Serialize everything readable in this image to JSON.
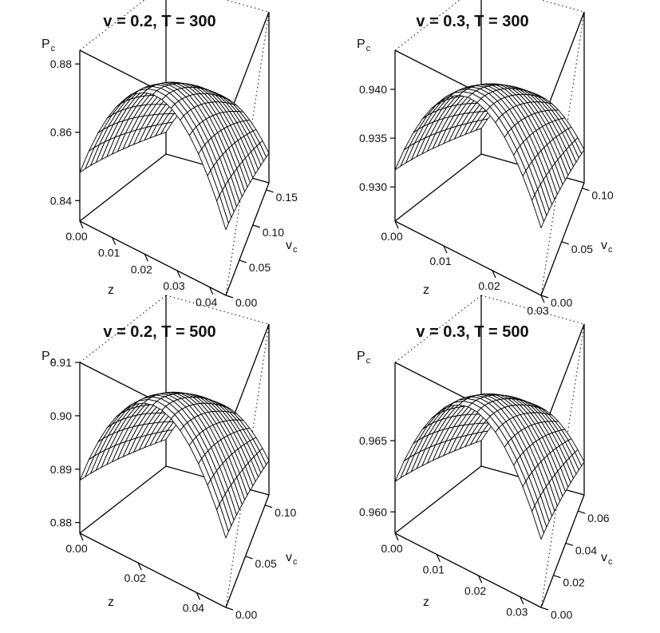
{
  "chart_data": [
    {
      "type": "surface",
      "title": "v = 0.2, T = 300",
      "zlabel": "P",
      "zlabel_sub": "c",
      "xlabel": "z",
      "ylabel": "v",
      "ylabel_sub": "c",
      "x_ticks": [
        "0.00",
        "0.01",
        "0.02",
        "0.03",
        "0.04"
      ],
      "y_ticks": [
        "0.00",
        "0.05",
        "0.10",
        "0.15"
      ],
      "z_ticks": [
        "0.84",
        "0.86",
        "0.88"
      ],
      "xlim": [
        0,
        0.045
      ],
      "ylim": [
        0,
        0.16
      ],
      "zlim": [
        0.834,
        0.884
      ],
      "z_min": 0.834,
      "z_max": 0.882,
      "z_xmax_ymax": 0.858,
      "z_xmax_y0": 0.866,
      "z_x0_ymax": 0.84
    },
    {
      "type": "surface",
      "title": "v = 0.3, T = 300",
      "zlabel": "P",
      "zlabel_sub": "c",
      "xlabel": "z",
      "ylabel": "v",
      "ylabel_sub": "c",
      "x_ticks": [
        "0.00",
        "0.01",
        "0.02",
        "0.03"
      ],
      "y_ticks": [
        "0.00",
        "0.05",
        "0.10"
      ],
      "z_ticks": [
        "0.930",
        "0.935",
        "0.940"
      ],
      "xlim": [
        0,
        0.03
      ],
      "ylim": [
        0,
        0.105
      ],
      "zlim": [
        0.9265,
        0.944
      ],
      "z_min": 0.927,
      "z_max": 0.943,
      "z_xmax_ymax": 0.9335,
      "z_xmax_y0": 0.936,
      "z_x0_ymax": 0.9315
    },
    {
      "type": "surface",
      "title": "v = 0.2, T = 500",
      "zlabel": "P",
      "zlabel_sub": "c",
      "xlabel": "z",
      "ylabel": "v",
      "ylabel_sub": "c",
      "x_ticks": [
        "0.00",
        "0.02",
        "0.04"
      ],
      "y_ticks": [
        "0.00",
        "0.05",
        "0.10"
      ],
      "z_ticks": [
        "0.88",
        "0.89",
        "0.90",
        "0.91"
      ],
      "xlim": [
        0,
        0.05
      ],
      "ylim": [
        0,
        0.11
      ],
      "zlim": [
        0.878,
        0.91
      ],
      "z_min": 0.879,
      "z_max": 0.909,
      "z_xmax_ymax": 0.894,
      "z_xmax_y0": 0.899,
      "z_x0_ymax": 0.882
    },
    {
      "type": "surface",
      "title": "v = 0.3, T = 500",
      "zlabel": "P",
      "zlabel_sub": "c",
      "xlabel": "z",
      "ylabel": "v",
      "ylabel_sub": "c",
      "x_ticks": [
        "0.00",
        "0.01",
        "0.02",
        "0.03"
      ],
      "y_ticks": [
        "0.00",
        "0.02",
        "0.04",
        "0.06"
      ],
      "z_ticks": [
        "0.960",
        "0.965"
      ],
      "xlim": [
        0,
        0.035
      ],
      "ylim": [
        0,
        0.07
      ],
      "zlim": [
        0.9585,
        0.9705
      ],
      "z_min": 0.9588,
      "z_max": 0.97,
      "z_xmax_ymax": 0.9635,
      "z_xmax_y0": 0.965,
      "z_x0_ymax": 0.96
    }
  ]
}
